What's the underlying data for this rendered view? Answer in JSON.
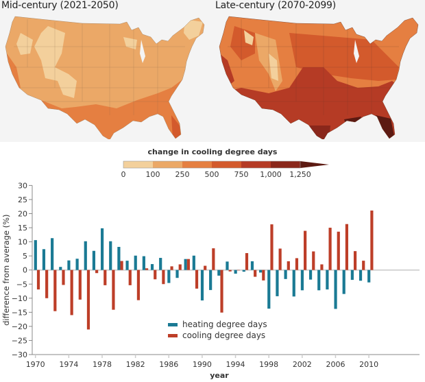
{
  "maps": [
    {
      "title": "Mid-century (2021-2050)",
      "period": "mid-century"
    },
    {
      "title": "Late-century (2070-2099)",
      "period": "late-century"
    }
  ],
  "colorbar": {
    "title": "change in cooling degree days",
    "bins": [
      {
        "from": 0,
        "to": 100,
        "color": "#f3d09c"
      },
      {
        "from": 100,
        "to": 250,
        "color": "#eba867"
      },
      {
        "from": 250,
        "to": 500,
        "color": "#e57f41"
      },
      {
        "from": 500,
        "to": 750,
        "color": "#d35a2c"
      },
      {
        "from": 750,
        "to": 1000,
        "color": "#b53b25"
      },
      {
        "from": 1000,
        "to": 1250,
        "color": "#8a271b"
      },
      {
        "from": 1250,
        "to": null,
        "color": "#5c1a12"
      }
    ],
    "tick_labels": [
      "0",
      "100",
      "250",
      "500",
      "750",
      "1,000",
      "1,250"
    ]
  },
  "chart_data": {
    "type": "bar",
    "title": "",
    "xlabel": "year",
    "ylabel": "difference from average (%)",
    "ylim": [
      -30,
      30
    ],
    "yticks": [
      30,
      25,
      20,
      15,
      10,
      5,
      0,
      -5,
      -10,
      -15,
      -20,
      -25,
      -30
    ],
    "ytick_labels": [
      "30",
      "25",
      "20",
      "15",
      "10",
      "5",
      "0",
      "−5",
      "−10",
      "−15",
      "−20",
      "−25",
      "−30"
    ],
    "xticks": [
      1970,
      1974,
      1978,
      1982,
      1986,
      1990,
      1994,
      1998,
      2002,
      2006,
      2010
    ],
    "x": [
      1970,
      1971,
      1972,
      1973,
      1974,
      1975,
      1976,
      1977,
      1978,
      1979,
      1980,
      1981,
      1982,
      1983,
      1984,
      1985,
      1986,
      1987,
      1988,
      1989,
      1990,
      1991,
      1992,
      1993,
      1994,
      1995,
      1996,
      1997,
      1998,
      1999,
      2000,
      2001,
      2002,
      2003,
      2004,
      2005,
      2006,
      2007,
      2008,
      2009,
      2010
    ],
    "series": [
      {
        "name": "heating degree days",
        "color": "#1a7a94",
        "values": [
          10.6,
          7.4,
          11.3,
          1.1,
          3.4,
          4.0,
          10.2,
          6.8,
          14.8,
          10.2,
          8.2,
          3.3,
          5.1,
          4.9,
          2.1,
          4.3,
          -4.6,
          -2.8,
          3.9,
          5.1,
          -10.8,
          -7.1,
          -2.0,
          3.0,
          -1.3,
          -0.6,
          3.1,
          -0.9,
          -13.7,
          -9.3,
          -3.2,
          -9.4,
          -7.2,
          -3.4,
          -7.2,
          -6.9,
          -13.8,
          -8.5,
          -3.5,
          -3.8,
          -4.4
        ]
      },
      {
        "name": "cooling degree days",
        "color": "#bd3e28",
        "values": [
          -6.9,
          -10.0,
          -14.6,
          -5.3,
          -16.0,
          -10.5,
          -21.1,
          -1.1,
          -5.4,
          -14.1,
          3.2,
          -5.4,
          -10.7,
          0.6,
          -3.3,
          -5.0,
          1.3,
          2.0,
          3.9,
          -6.6,
          1.5,
          7.7,
          -15.1,
          -0.5,
          -0.1,
          6.0,
          -2.4,
          -3.7,
          16.2,
          7.6,
          3.1,
          4.2,
          13.9,
          6.6,
          2.0,
          15.0,
          13.6,
          16.3,
          6.7,
          3.3,
          21.1
        ]
      }
    ],
    "legend": {
      "placement": "bottom-center",
      "entries": [
        "heating degree days",
        "cooling degree days"
      ]
    },
    "grid": false
  }
}
